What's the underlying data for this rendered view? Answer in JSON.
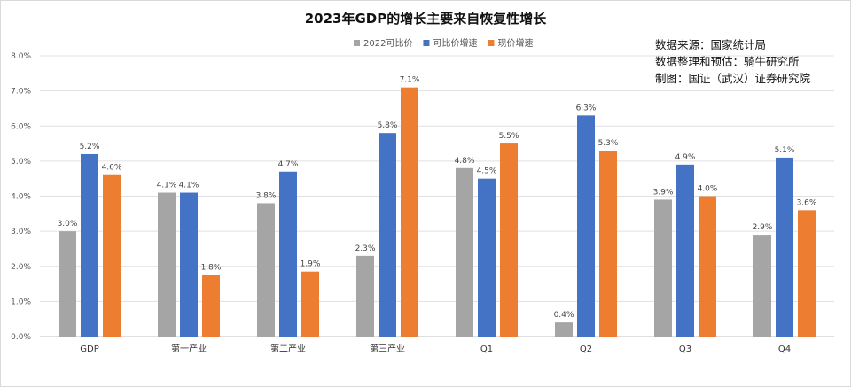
{
  "chart_data": {
    "type": "bar",
    "title": "2023年GDP的增长主要来自恢复性增长",
    "categories": [
      "GDP",
      "第一产业",
      "第二产业",
      "第三产业",
      "Q1",
      "Q2",
      "Q3",
      "Q4"
    ],
    "series": [
      {
        "name": "2022可比价",
        "color": "#a5a5a5",
        "values": [
          3.0,
          4.1,
          3.8,
          2.3,
          4.8,
          0.4,
          3.9,
          2.9
        ],
        "labels": [
          "3.0%",
          "4.1%",
          "3.8%",
          "2.3%",
          "4.8%",
          "0.4%",
          "3.9%",
          "2.9%"
        ]
      },
      {
        "name": "可比价增速",
        "color": "#4472c4",
        "values": [
          5.2,
          4.1,
          4.7,
          5.8,
          4.5,
          6.3,
          4.9,
          5.1
        ],
        "labels": [
          "5.2%",
          "4.1%",
          "4.7%",
          "5.8%",
          "4.5%",
          "6.3%",
          "4.9%",
          "5.1%"
        ]
      },
      {
        "name": "现价增速",
        "color": "#ed7d31",
        "values": [
          4.6,
          1.75,
          1.85,
          7.1,
          5.5,
          5.3,
          4.0,
          3.6
        ],
        "labels": [
          "4.6%",
          "1.8%",
          "1.9%",
          "7.1%",
          "5.5%",
          "5.3%",
          "4.0%",
          "3.6%"
        ]
      }
    ],
    "ylim": [
      0,
      8
    ],
    "yticks": [
      0,
      1,
      2,
      3,
      4,
      5,
      6,
      7,
      8
    ],
    "ytick_labels": [
      "0.0%",
      "1.0%",
      "2.0%",
      "3.0%",
      "4.0%",
      "5.0%",
      "6.0%",
      "7.0%",
      "8.0%"
    ],
    "xlabel": "",
    "ylabel": "",
    "grid": true,
    "legend_position": "top-center"
  },
  "source": {
    "lines": [
      "数据来源：国家统计局",
      "数据整理和预估：骑牛研究所",
      "制图：国证（武汉）证券研究院"
    ]
  }
}
